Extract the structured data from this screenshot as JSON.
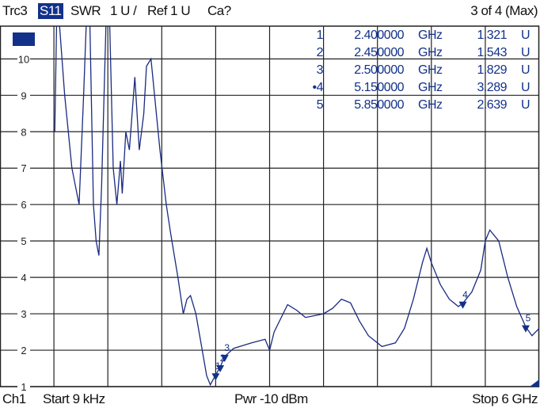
{
  "header": {
    "trace": "Trc3",
    "param": "S11",
    "format": "SWR",
    "scale": "1 U /",
    "ref": "Ref 1 U",
    "cal": "Ca?",
    "count": "3 of 4 (Max)"
  },
  "plot_badge": "S11",
  "footer": {
    "channel": "Ch1",
    "start": "Start  9 kHz",
    "power": "Pwr  -10 dBm",
    "stop": "Stop  6 GHz"
  },
  "colors": {
    "trace": "#1a2a80",
    "accent": "#12318a",
    "grid": "#222222"
  },
  "markers": [
    {
      "num": "1",
      "freq": "2.400000",
      "unit_f": "GHz",
      "value": "1.321",
      "unit_v": "U",
      "active": false
    },
    {
      "num": "2",
      "freq": "2.450000",
      "unit_f": "GHz",
      "value": "1.543",
      "unit_v": "U",
      "active": false
    },
    {
      "num": "3",
      "freq": "2.500000",
      "unit_f": "GHz",
      "value": "1.829",
      "unit_v": "U",
      "active": false
    },
    {
      "num": "•4",
      "freq": "5.150000",
      "unit_f": "GHz",
      "value": "3.289",
      "unit_v": "U",
      "active": true
    },
    {
      "num": "5",
      "freq": "5.850000",
      "unit_f": "GHz",
      "value": "2.639",
      "unit_v": "U",
      "active": false
    }
  ],
  "chart_data": {
    "type": "line",
    "xlabel": "",
    "ylabel": "",
    "xlim": [
      0,
      6
    ],
    "ylim": [
      1,
      10.9
    ],
    "yticks": [
      "1",
      "2",
      "3",
      "4",
      "5",
      "6",
      "7",
      "8",
      "9",
      "10"
    ],
    "x_divisions": 10,
    "grid": true,
    "series": [
      {
        "x": [
          0.61,
          0.63,
          0.66,
          0.72,
          0.8,
          0.88,
          0.93,
          0.96,
          1.0,
          1.04,
          1.07,
          1.1,
          1.13,
          1.18,
          1.22,
          1.26,
          1.3,
          1.34,
          1.36,
          1.4,
          1.44,
          1.5,
          1.55,
          1.6,
          1.63,
          1.68,
          1.72,
          1.78,
          1.85,
          1.9,
          1.98,
          2.04,
          2.08,
          2.12,
          2.18,
          2.25,
          2.3,
          2.34,
          2.4,
          2.45,
          2.5,
          2.6,
          2.8,
          2.95,
          3.0,
          3.05,
          3.15,
          3.2,
          3.3,
          3.4,
          3.6,
          3.7,
          3.8,
          3.9,
          4.0,
          4.1,
          4.25,
          4.4,
          4.5,
          4.6,
          4.7,
          4.75,
          4.8,
          4.9,
          5.0,
          5.1,
          5.15,
          5.25,
          5.35,
          5.4,
          5.45,
          5.55,
          5.65,
          5.75,
          5.85,
          5.92,
          6.0
        ],
        "y": [
          8.0,
          11,
          11,
          9,
          7.0,
          6.0,
          9,
          11,
          11,
          6,
          5.0,
          4.6,
          6.5,
          11,
          11,
          7,
          6.0,
          7.2,
          6.3,
          8,
          7.5,
          9.5,
          7.5,
          8.5,
          9.8,
          10.0,
          9.0,
          7.5,
          6.0,
          5.2,
          4.0,
          3.0,
          3.4,
          3.5,
          3.0,
          2.0,
          1.3,
          1.05,
          1.32,
          1.54,
          1.83,
          2.05,
          2.2,
          2.3,
          2.0,
          2.5,
          3.0,
          3.25,
          3.1,
          2.9,
          3.0,
          3.15,
          3.4,
          3.3,
          2.8,
          2.4,
          2.1,
          2.2,
          2.6,
          3.4,
          4.4,
          4.8,
          4.4,
          3.8,
          3.4,
          3.2,
          3.29,
          3.6,
          4.2,
          5.0,
          5.3,
          5.0,
          4.0,
          3.2,
          2.64,
          2.4,
          2.6
        ]
      }
    ],
    "markers": [
      {
        "label": "1",
        "x": 2.4,
        "y": 1.321
      },
      {
        "label": "2",
        "x": 2.45,
        "y": 1.543
      },
      {
        "label": "3",
        "x": 2.5,
        "y": 1.829
      },
      {
        "label": "4",
        "x": 5.15,
        "y": 3.289
      },
      {
        "label": "5",
        "x": 5.85,
        "y": 2.639
      }
    ]
  }
}
